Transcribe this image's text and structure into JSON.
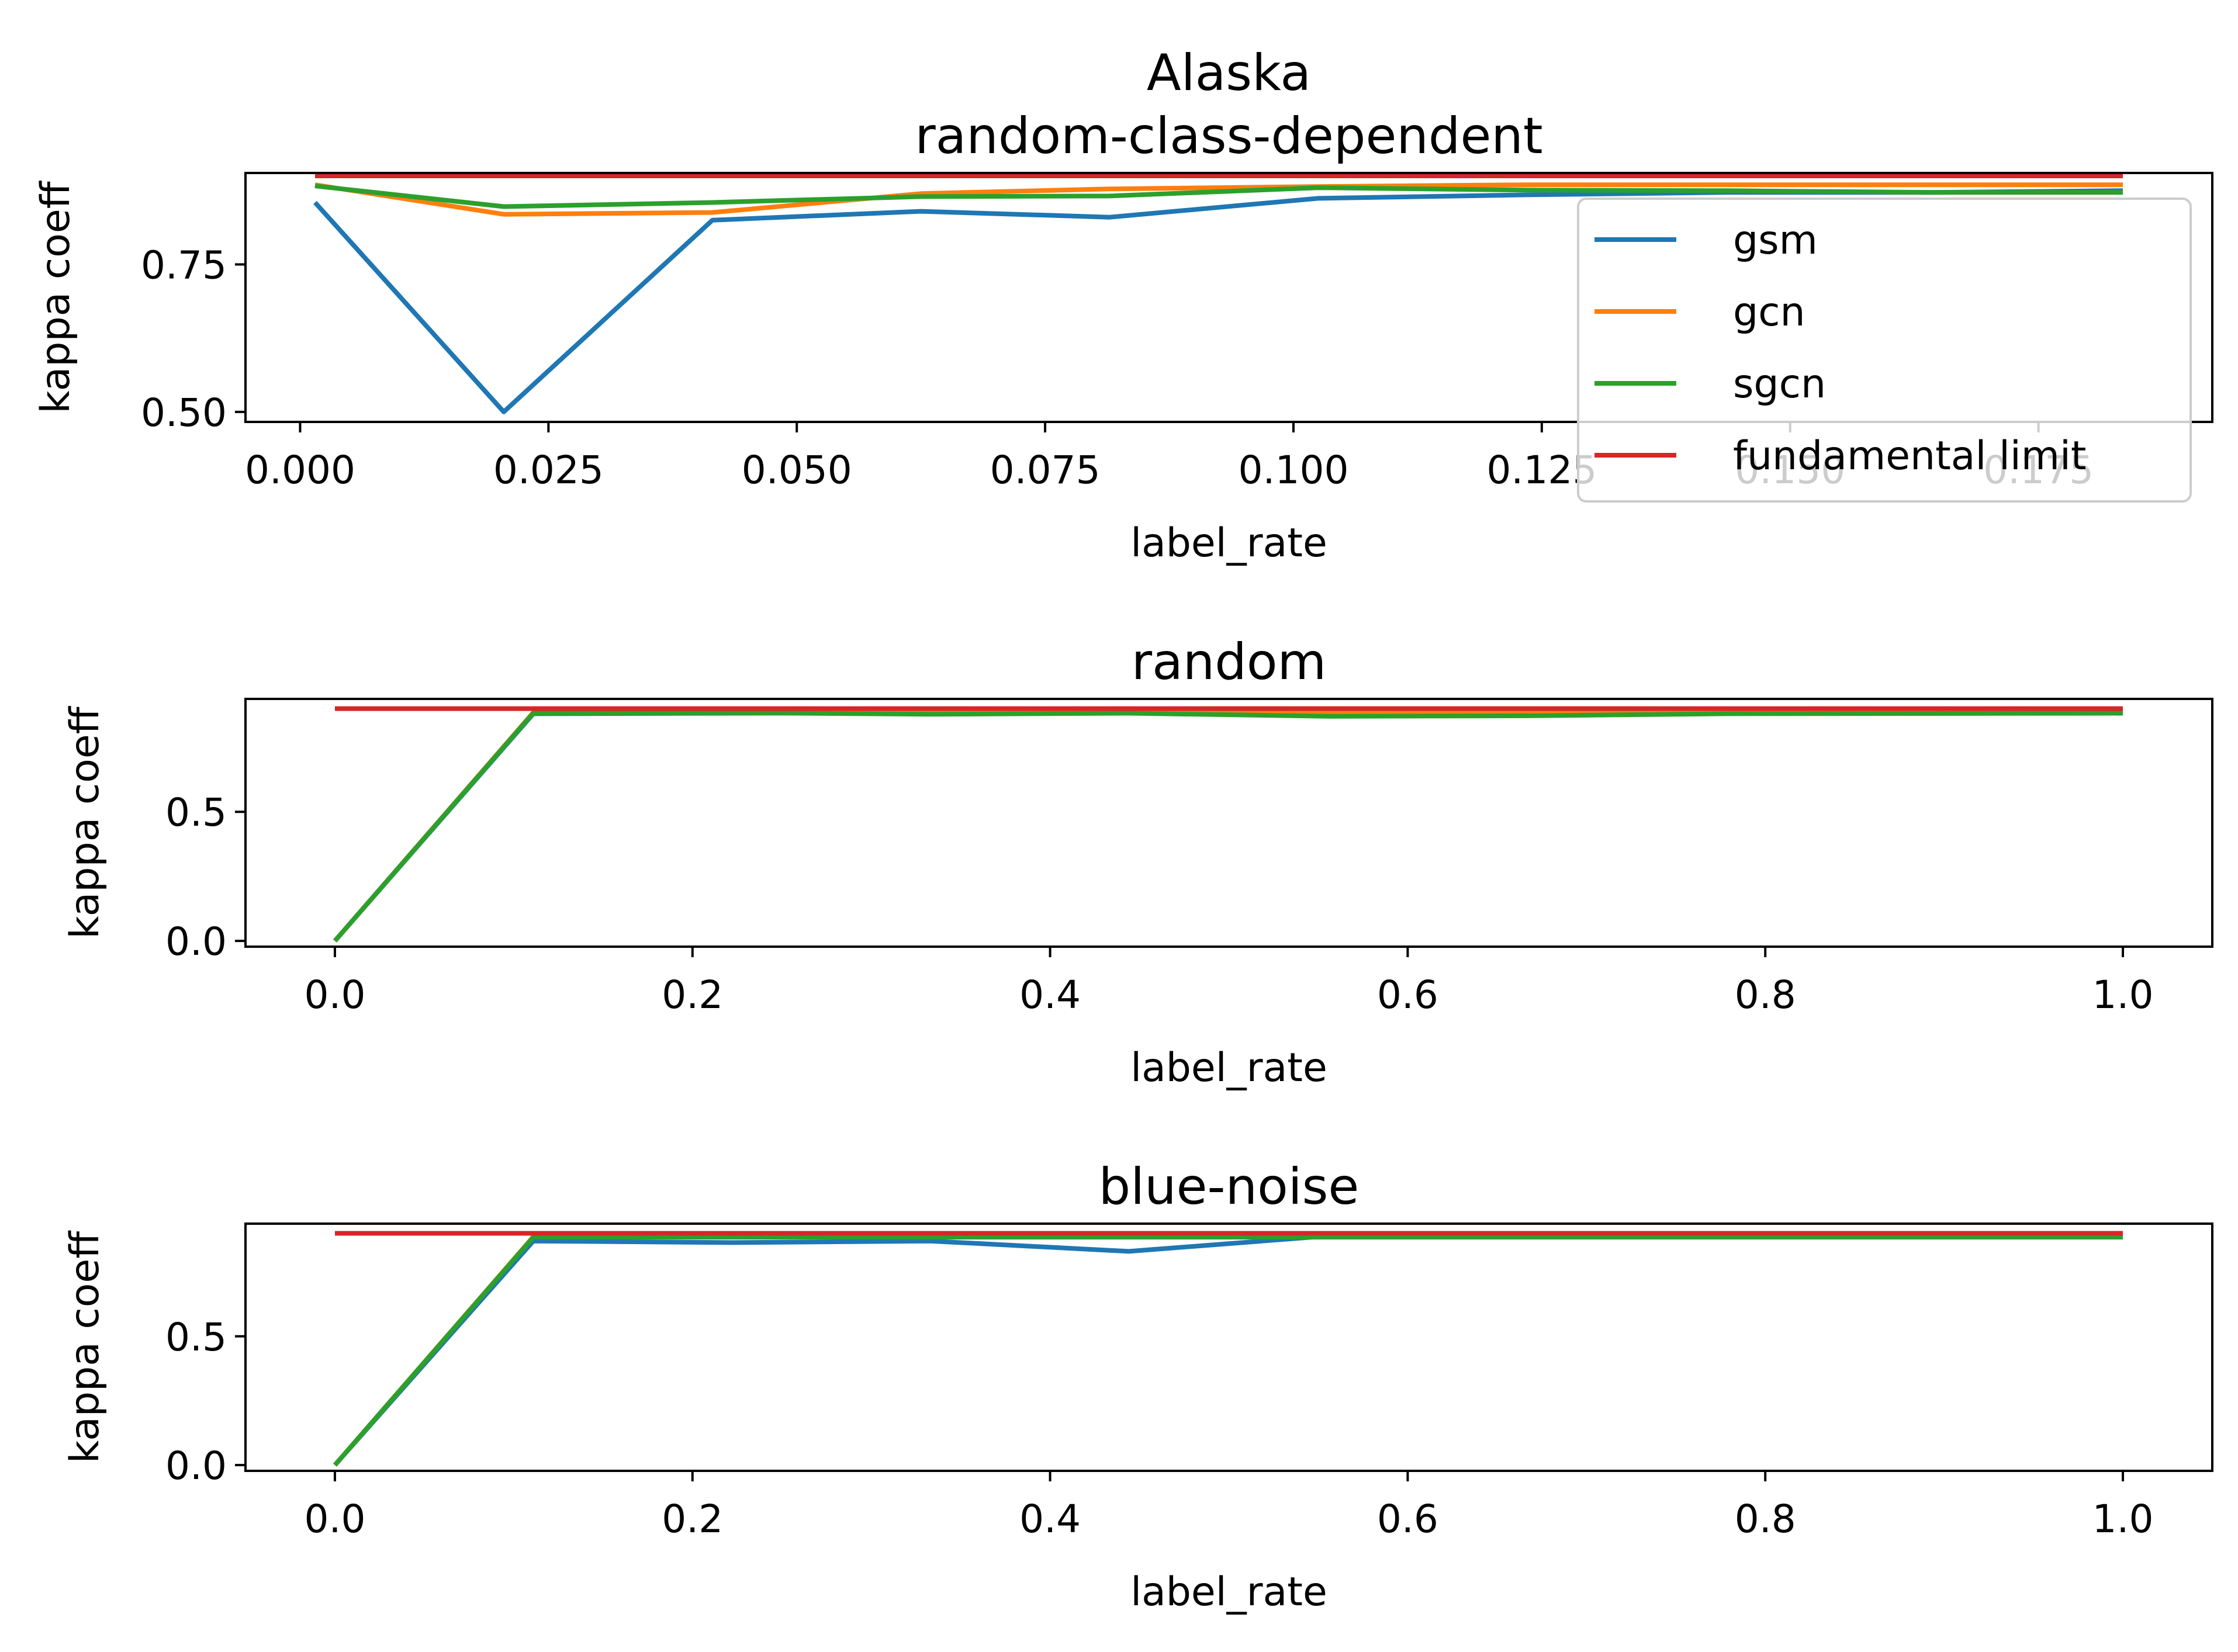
{
  "chart_data": [
    {
      "type": "line",
      "title": "Alaska\nrandom-class-dependent",
      "xlabel": "label_rate",
      "ylabel": "kappa coeff",
      "xlim": [
        -0.0055,
        0.1925
      ],
      "ylim": [
        0.483,
        0.905
      ],
      "xticks": [
        0.0,
        0.025,
        0.05,
        0.075,
        0.1,
        0.125,
        0.15,
        0.175
      ],
      "xtick_labels": [
        "0.000",
        "0.025",
        "0.050",
        "0.075",
        "0.100",
        "0.125",
        "0.150",
        "0.175"
      ],
      "yticks": [
        0.5,
        0.75
      ],
      "ytick_labels": [
        "0.50",
        "0.75"
      ],
      "x": [
        0.0015,
        0.0205,
        0.0415,
        0.0625,
        0.0815,
        0.1025,
        0.1235,
        0.1435,
        0.1645,
        0.1835
      ],
      "series": [
        {
          "name": "gsm",
          "color": "#1f77b4",
          "values": [
            0.855,
            0.5,
            0.825,
            0.84,
            0.83,
            0.862,
            0.868,
            0.872,
            0.872,
            0.875
          ]
        },
        {
          "name": "gcn",
          "color": "#ff7f0e",
          "values": [
            0.885,
            0.835,
            0.838,
            0.87,
            0.878,
            0.882,
            0.885,
            0.885,
            0.885,
            0.885
          ]
        },
        {
          "name": "sgcn",
          "color": "#2ca02c",
          "values": [
            0.883,
            0.848,
            0.855,
            0.865,
            0.866,
            0.88,
            0.876,
            0.875,
            0.872,
            0.872
          ]
        },
        {
          "name": "fundamental limit",
          "color": "#d62728",
          "values": [
            0.9,
            0.9,
            0.9,
            0.9,
            0.9,
            0.9,
            0.9,
            0.9,
            0.9,
            0.9
          ]
        }
      ],
      "legend": {
        "placement": "upper right",
        "entries": [
          "gsm",
          "gcn",
          "sgcn",
          "fundamental limit"
        ]
      }
    },
    {
      "type": "line",
      "title": "random",
      "xlabel": "label_rate",
      "ylabel": "kappa coeff",
      "xlim": [
        -0.05,
        1.05
      ],
      "ylim": [
        -0.0225,
        0.9375
      ],
      "xticks": [
        0.0,
        0.2,
        0.4,
        0.6,
        0.8,
        1.0
      ],
      "xtick_labels": [
        "0.0",
        "0.2",
        "0.4",
        "0.6",
        "0.8",
        "1.0"
      ],
      "yticks": [
        0.0,
        0.5
      ],
      "ytick_labels": [
        "0.0",
        "0.5"
      ],
      "x": [
        0.0,
        0.111,
        0.222,
        0.333,
        0.444,
        0.556,
        0.667,
        0.778,
        0.889,
        1.0
      ],
      "series": [
        {
          "name": "gsm",
          "color": "#1f77b4",
          "values": [
            0.0,
            0.88,
            0.882,
            0.884,
            0.886,
            0.884,
            0.884,
            0.886,
            0.886,
            0.888
          ]
        },
        {
          "name": "gcn",
          "color": "#ff7f0e",
          "values": [
            0.0,
            0.885,
            0.887,
            0.887,
            0.887,
            0.887,
            0.887,
            0.887,
            0.887,
            0.887
          ]
        },
        {
          "name": "sgcn",
          "color": "#2ca02c",
          "values": [
            0.0,
            0.883,
            0.884,
            0.878,
            0.882,
            0.87,
            0.872,
            0.88,
            0.881,
            0.882
          ]
        },
        {
          "name": "fundamental limit",
          "color": "#d62728",
          "values": [
            0.9,
            0.9,
            0.9,
            0.9,
            0.9,
            0.9,
            0.9,
            0.9,
            0.9,
            0.9
          ]
        }
      ]
    },
    {
      "type": "line",
      "title": "blue-noise",
      "xlabel": "label_rate",
      "ylabel": "kappa coeff",
      "xlim": [
        -0.05,
        1.05
      ],
      "ylim": [
        -0.0225,
        0.9375
      ],
      "xticks": [
        0.0,
        0.2,
        0.4,
        0.6,
        0.8,
        1.0
      ],
      "xtick_labels": [
        "0.0",
        "0.2",
        "0.4",
        "0.6",
        "0.8",
        "1.0"
      ],
      "yticks": [
        0.0,
        0.5
      ],
      "ytick_labels": [
        "0.0",
        "0.5"
      ],
      "x": [
        0.0,
        0.111,
        0.222,
        0.333,
        0.444,
        0.556,
        0.667,
        0.778,
        0.889,
        1.0
      ],
      "series": [
        {
          "name": "gsm",
          "color": "#1f77b4",
          "values": [
            0.0,
            0.87,
            0.864,
            0.87,
            0.83,
            0.89,
            0.89,
            0.89,
            0.89,
            0.89
          ]
        },
        {
          "name": "gcn",
          "color": "#ff7f0e",
          "values": [
            0.0,
            0.887,
            0.887,
            0.887,
            0.887,
            0.887,
            0.887,
            0.887,
            0.887,
            0.887
          ]
        },
        {
          "name": "sgcn",
          "color": "#2ca02c",
          "values": [
            0.0,
            0.885,
            0.885,
            0.885,
            0.885,
            0.885,
            0.885,
            0.885,
            0.885,
            0.885
          ]
        },
        {
          "name": "fundamental limit",
          "color": "#d62728",
          "values": [
            0.9,
            0.9,
            0.9,
            0.9,
            0.9,
            0.9,
            0.9,
            0.9,
            0.9,
            0.9
          ]
        }
      ]
    }
  ]
}
